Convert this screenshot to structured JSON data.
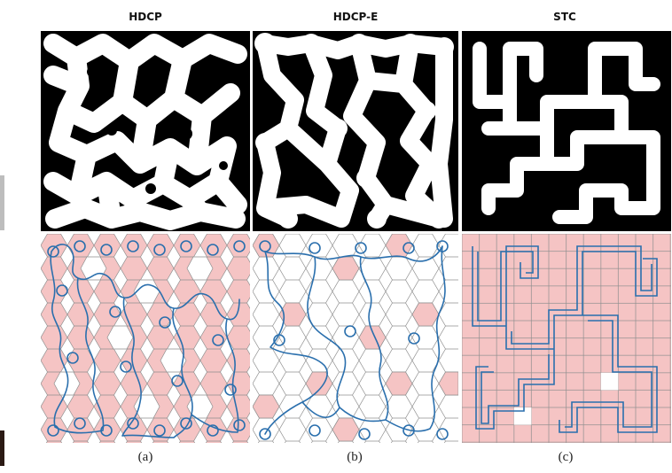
{
  "columns": [
    {
      "title": "HDCP",
      "caption": "(a)"
    },
    {
      "title": "HDCP-E",
      "caption": "(b)"
    },
    {
      "title": "STC",
      "caption": "(c)"
    }
  ],
  "colors": {
    "background": "#ffffff",
    "mask_dark": "#000000",
    "mask_free": "#ffffff",
    "cell_fill": "#f5c4c4",
    "cell_line": "#8f8f8f",
    "path_line": "#2a6fad",
    "left_strip": "#2b1a14"
  }
}
